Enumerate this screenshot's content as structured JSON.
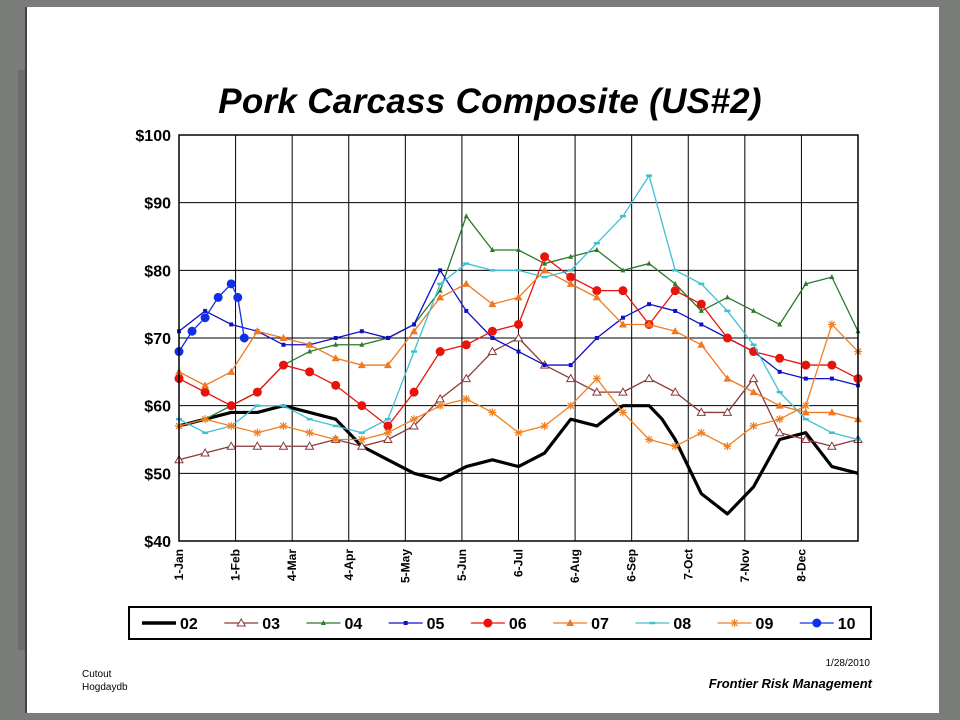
{
  "chart_data": {
    "type": "line",
    "title": "Pork Carcass Composite (US#2)",
    "ylim": [
      40,
      100
    ],
    "yticks": [
      "$100",
      "$90",
      "$80",
      "$70",
      "$60",
      "$50",
      "$40"
    ],
    "ytick_values": [
      100,
      90,
      80,
      70,
      60,
      50,
      40
    ],
    "xticks": [
      "1-Jan",
      "1-Feb",
      "4-Mar",
      "4-Apr",
      "5-May",
      "5-Jun",
      "6-Jul",
      "6-Aug",
      "6-Sep",
      "7-Oct",
      "7-Nov",
      "8-Dec"
    ],
    "x_unit": "week",
    "x_range": [
      0,
      52
    ],
    "grid": true,
    "legend_position": "bottom",
    "series": [
      {
        "name": "02",
        "color": "#000000",
        "marker": "none",
        "x": [
          0,
          2,
          4,
          6,
          8,
          10,
          12,
          14,
          16,
          18,
          20,
          22,
          24,
          26,
          28,
          30,
          32,
          34,
          36,
          37,
          38,
          40,
          42,
          44,
          46,
          48,
          50,
          52
        ],
        "values": [
          57,
          58,
          59,
          59,
          60,
          59,
          58,
          54,
          52,
          50,
          49,
          51,
          52,
          51,
          53,
          58,
          57,
          60,
          60,
          58,
          55,
          47,
          44,
          48,
          55,
          56,
          51,
          50
        ]
      },
      {
        "name": "03",
        "color": "#8b3a3a",
        "marker": "triangle-open",
        "x": [
          0,
          2,
          4,
          6,
          8,
          10,
          12,
          14,
          16,
          18,
          20,
          22,
          24,
          26,
          28,
          30,
          32,
          34,
          36,
          38,
          40,
          42,
          44,
          46,
          48,
          50,
          52
        ],
        "values": [
          52,
          53,
          54,
          54,
          54,
          54,
          55,
          54,
          55,
          57,
          61,
          64,
          68,
          70,
          66,
          64,
          62,
          62,
          64,
          62,
          59,
          59,
          64,
          56,
          55,
          54,
          55
        ]
      },
      {
        "name": "04",
        "color": "#2a7a2a",
        "marker": "triangle-small",
        "x": [
          0,
          2,
          4,
          6,
          8,
          10,
          12,
          14,
          16,
          18,
          20,
          22,
          24,
          26,
          28,
          30,
          32,
          34,
          36,
          38,
          40,
          42,
          44,
          46,
          48,
          50,
          52
        ],
        "values": [
          57,
          58,
          60,
          62,
          66,
          68,
          69,
          69,
          70,
          72,
          77,
          88,
          83,
          83,
          81,
          82,
          83,
          80,
          81,
          78,
          74,
          76,
          74,
          72,
          78,
          79,
          71
        ]
      },
      {
        "name": "05",
        "color": "#1010c8",
        "marker": "square-small",
        "x": [
          0,
          2,
          4,
          6,
          8,
          10,
          12,
          14,
          16,
          18,
          20,
          22,
          24,
          26,
          28,
          30,
          32,
          34,
          36,
          38,
          40,
          42,
          44,
          46,
          48,
          50,
          52
        ],
        "values": [
          71,
          74,
          72,
          71,
          69,
          69,
          70,
          71,
          70,
          72,
          80,
          74,
          70,
          68,
          66,
          66,
          70,
          73,
          75,
          74,
          72,
          70,
          68,
          65,
          64,
          64,
          63
        ]
      },
      {
        "name": "06",
        "color": "#e8140c",
        "marker": "circle",
        "x": [
          0,
          2,
          4,
          6,
          8,
          10,
          12,
          14,
          16,
          18,
          20,
          22,
          24,
          26,
          28,
          30,
          32,
          34,
          36,
          38,
          40,
          42,
          44,
          46,
          48,
          50,
          52
        ],
        "values": [
          64,
          62,
          60,
          62,
          66,
          65,
          63,
          60,
          57,
          62,
          68,
          69,
          71,
          72,
          82,
          79,
          77,
          77,
          72,
          77,
          75,
          70,
          68,
          67,
          66,
          66,
          64
        ]
      },
      {
        "name": "07",
        "color": "#f07820",
        "marker": "triangle",
        "x": [
          0,
          2,
          4,
          6,
          8,
          10,
          12,
          14,
          16,
          18,
          20,
          22,
          24,
          26,
          28,
          30,
          32,
          34,
          36,
          38,
          40,
          42,
          44,
          46,
          48,
          50,
          52
        ],
        "values": [
          65,
          63,
          65,
          71,
          70,
          69,
          67,
          66,
          66,
          71,
          76,
          78,
          75,
          76,
          80,
          78,
          76,
          72,
          72,
          71,
          69,
          64,
          62,
          60,
          59,
          59,
          58
        ]
      },
      {
        "name": "08",
        "color": "#40c0d0",
        "marker": "dash",
        "x": [
          0,
          2,
          4,
          6,
          8,
          10,
          12,
          14,
          16,
          18,
          20,
          22,
          24,
          26,
          28,
          30,
          32,
          34,
          36,
          38,
          40,
          42,
          44,
          46,
          48,
          50,
          52
        ],
        "values": [
          58,
          56,
          57,
          60,
          60,
          58,
          57,
          56,
          58,
          68,
          78,
          81,
          80,
          80,
          79,
          80,
          84,
          88,
          94,
          80,
          78,
          74,
          69,
          62,
          58,
          56,
          55
        ]
      },
      {
        "name": "09",
        "color": "#f08020",
        "marker": "star",
        "x": [
          0,
          2,
          4,
          6,
          8,
          10,
          12,
          14,
          16,
          18,
          20,
          22,
          24,
          26,
          28,
          30,
          32,
          34,
          36,
          38,
          40,
          42,
          44,
          46,
          48,
          50,
          52
        ],
        "values": [
          57,
          58,
          57,
          56,
          57,
          56,
          55,
          55,
          56,
          58,
          60,
          61,
          59,
          56,
          57,
          60,
          64,
          59,
          55,
          54,
          56,
          54,
          57,
          58,
          60,
          72,
          68
        ]
      },
      {
        "name": "10",
        "color": "#1030e8",
        "marker": "circle",
        "x": [
          0,
          1,
          2,
          3,
          4,
          4.5,
          5
        ],
        "values": [
          68,
          71,
          73,
          76,
          78,
          76,
          70
        ]
      }
    ]
  },
  "footer": {
    "left_line1": "Cutout",
    "left_line2": "Hogdaydb",
    "date": "1/28/2010",
    "company": "Frontier Risk Management"
  }
}
